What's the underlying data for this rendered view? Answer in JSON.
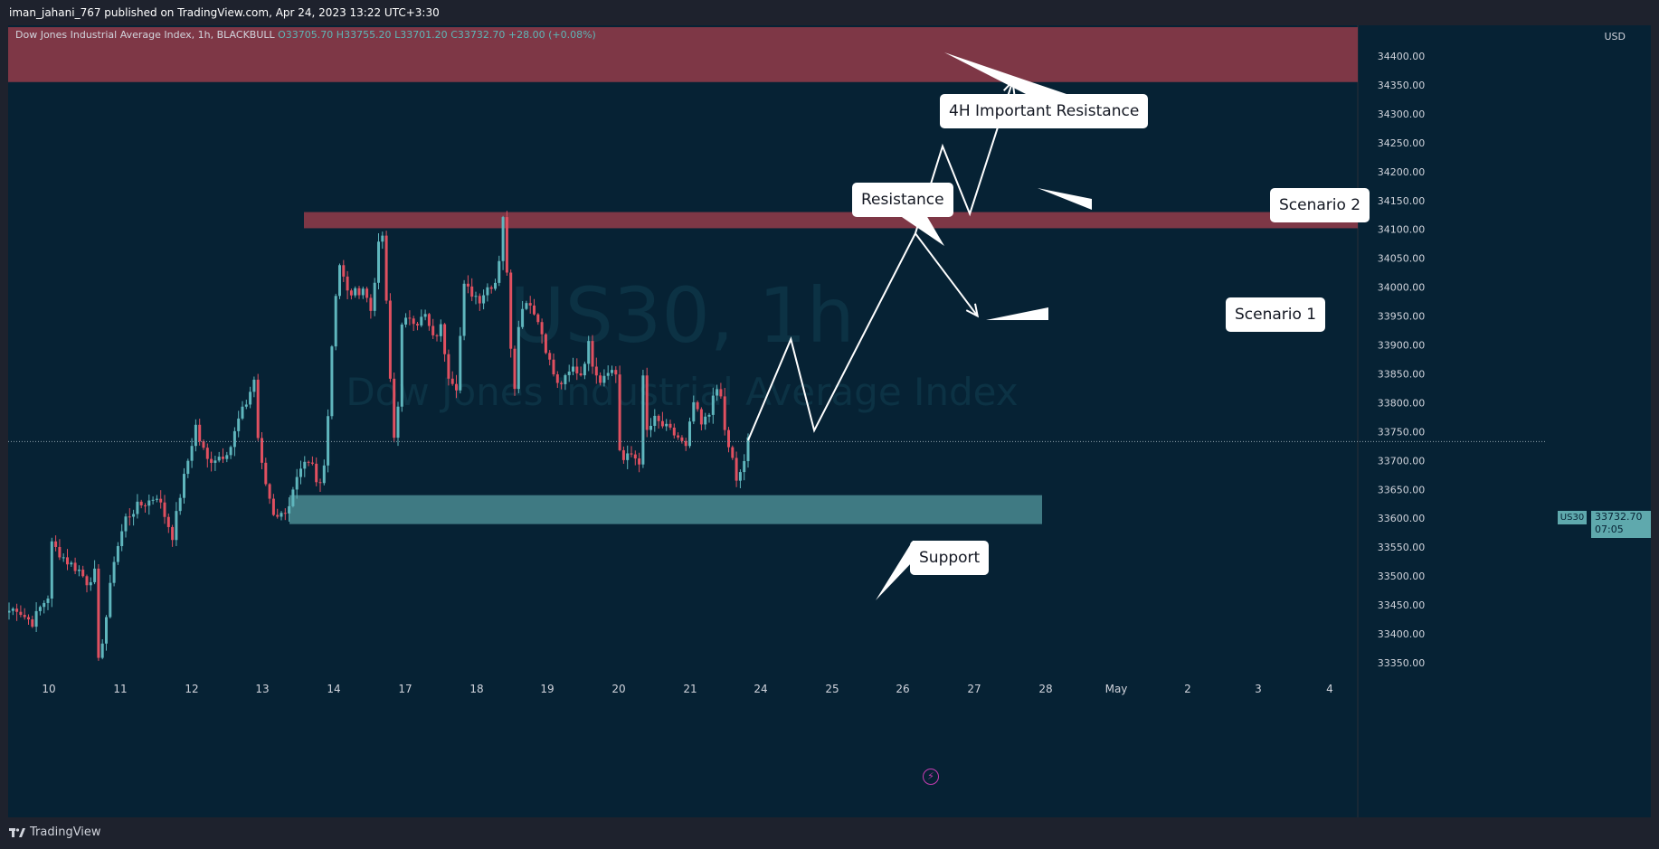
{
  "header": {
    "published_line": "iman_jahani_767 published on TradingView.com, Apr 24, 2023 13:22 UTC+3:30"
  },
  "legend": {
    "title": "Dow Jones Industrial Average Index, 1h, BLACKBULL",
    "open": "O33705.70",
    "high": "H33755.20",
    "low": "L33701.20",
    "close": "C33732.70",
    "change": "+28.00 (+0.08%)"
  },
  "watermark": {
    "symbol": "US30, 1h",
    "name": "Dow Jones Industrial Average Index"
  },
  "axis": {
    "currency": "USD",
    "current_symbol": "US30",
    "current_price": "33732.70",
    "countdown": "07:05"
  },
  "footer": {
    "brand": "TradingView"
  },
  "annotations": {
    "important_resistance": "4H Important Resistance",
    "resistance": "Resistance",
    "support": "Support",
    "scenario1": "Scenario 1",
    "scenario2": "Scenario 2"
  },
  "colors": {
    "background": "#062234",
    "zone_resistance": "#7e3746",
    "zone_support": "#3f7a83",
    "candle_up": "#5fb6bd",
    "candle_down": "#e05060",
    "projection": "#ffffff"
  },
  "chart_data": {
    "type": "candlestick",
    "symbol": "US30",
    "interval": "1h",
    "y_ticks": [
      34400,
      34350,
      34300,
      34250,
      34200,
      34150,
      34100,
      34050,
      34000,
      33950,
      33900,
      33850,
      33800,
      33750,
      33700,
      33650,
      33600,
      33550,
      33500,
      33450,
      33400,
      33350
    ],
    "y_tick_labels": [
      "34400.00",
      "34350.00",
      "34300.00",
      "34250.00",
      "34200.00",
      "34150.00",
      "34100.00",
      "34050.00",
      "34000.00",
      "33950.00",
      "33900.00",
      "33850.00",
      "33800.00",
      "33750.00",
      "33700.00",
      "33650.00",
      "33600.00",
      "33550.00",
      "33500.00",
      "33450.00",
      "33400.00",
      "33350.00"
    ],
    "x_tick_labels": [
      "10",
      "11",
      "12",
      "13",
      "14",
      "17",
      "18",
      "19",
      "20",
      "21",
      "24",
      "25",
      "26",
      "27",
      "28",
      "May",
      "2",
      "3",
      "4"
    ],
    "ylim": [
      33330,
      34450
    ],
    "current_price": 33732.7,
    "zones": [
      {
        "name": "4H Important Resistance",
        "low": 34355,
        "high": 34450,
        "color": "#7e3746"
      },
      {
        "name": "Resistance",
        "low": 34102,
        "high": 34130,
        "color": "#7e3746"
      },
      {
        "name": "Support",
        "low": 33590,
        "high": 33640,
        "color": "#3f7a83"
      }
    ],
    "price_path": [
      [
        0,
        33440
      ],
      [
        2,
        33445
      ],
      [
        4,
        33430
      ],
      [
        6,
        33420
      ],
      [
        8,
        33445
      ],
      [
        10,
        33465
      ],
      [
        11,
        33555
      ],
      [
        13,
        33540
      ],
      [
        15,
        33525
      ],
      [
        18,
        33510
      ],
      [
        20,
        33490
      ],
      [
        22,
        33505
      ],
      [
        23,
        33350
      ],
      [
        25,
        33430
      ],
      [
        27,
        33530
      ],
      [
        30,
        33600
      ],
      [
        33,
        33620
      ],
      [
        36,
        33630
      ],
      [
        38,
        33640
      ],
      [
        40,
        33605
      ],
      [
        42,
        33570
      ],
      [
        44,
        33640
      ],
      [
        46,
        33700
      ],
      [
        48,
        33760
      ],
      [
        49,
        33735
      ],
      [
        51,
        33700
      ],
      [
        55,
        33710
      ],
      [
        57,
        33725
      ],
      [
        59,
        33770
      ],
      [
        61,
        33800
      ],
      [
        63,
        33840
      ],
      [
        64,
        33740
      ],
      [
        65,
        33690
      ],
      [
        66,
        33660
      ],
      [
        68,
        33610
      ],
      [
        70,
        33605
      ],
      [
        72,
        33625
      ],
      [
        74,
        33665
      ],
      [
        76,
        33690
      ],
      [
        78,
        33690
      ],
      [
        79,
        33660
      ],
      [
        80,
        33660
      ],
      [
        81,
        33700
      ],
      [
        82,
        33780
      ],
      [
        83,
        33900
      ],
      [
        84,
        33990
      ],
      [
        85,
        34040
      ],
      [
        87,
        33990
      ],
      [
        89,
        33990
      ],
      [
        91,
        34000
      ],
      [
        93,
        33960
      ],
      [
        95,
        34070
      ],
      [
        96,
        34090
      ],
      [
        97,
        33970
      ],
      [
        98,
        33840
      ],
      [
        99,
        33740
      ],
      [
        100,
        33800
      ],
      [
        101,
        33930
      ],
      [
        103,
        33950
      ],
      [
        105,
        33940
      ],
      [
        107,
        33950
      ],
      [
        109,
        33910
      ],
      [
        111,
        33930
      ],
      [
        113,
        33850
      ],
      [
        115,
        33830
      ],
      [
        117,
        34000
      ],
      [
        119,
        33990
      ],
      [
        121,
        33980
      ],
      [
        123,
        34000
      ],
      [
        125,
        34010
      ],
      [
        126,
        34050
      ],
      [
        127,
        34125
      ],
      [
        128,
        34020
      ],
      [
        129,
        33900
      ],
      [
        130,
        33830
      ],
      [
        131,
        33940
      ],
      [
        133,
        33980
      ],
      [
        135,
        33960
      ],
      [
        137,
        33920
      ],
      [
        139,
        33870
      ],
      [
        141,
        33830
      ],
      [
        143,
        33840
      ],
      [
        145,
        33860
      ],
      [
        147,
        33850
      ],
      [
        149,
        33900
      ],
      [
        150,
        33870
      ],
      [
        152,
        33840
      ],
      [
        154,
        33860
      ],
      [
        156,
        33850
      ],
      [
        157,
        33720
      ],
      [
        158,
        33700
      ],
      [
        160,
        33710
      ],
      [
        162,
        33700
      ],
      [
        163,
        33840
      ],
      [
        164,
        33750
      ],
      [
        166,
        33770
      ],
      [
        168,
        33760
      ],
      [
        170,
        33750
      ],
      [
        172,
        33740
      ],
      [
        174,
        33720
      ],
      [
        176,
        33800
      ],
      [
        178,
        33760
      ],
      [
        180,
        33780
      ],
      [
        181,
        33820
      ],
      [
        183,
        33810
      ],
      [
        184,
        33750
      ],
      [
        186,
        33700
      ],
      [
        187,
        33660
      ],
      [
        189,
        33700
      ],
      [
        190,
        33740
      ]
    ],
    "projection_path": [
      [
        190,
        33735
      ],
      [
        201,
        33910
      ],
      [
        207,
        33752
      ],
      [
        233,
        34093
      ],
      [
        240,
        34244
      ],
      [
        247,
        34127
      ],
      [
        258,
        34356
      ]
    ],
    "scenario1_path": [
      [
        233,
        34093
      ],
      [
        249,
        33950
      ]
    ]
  }
}
